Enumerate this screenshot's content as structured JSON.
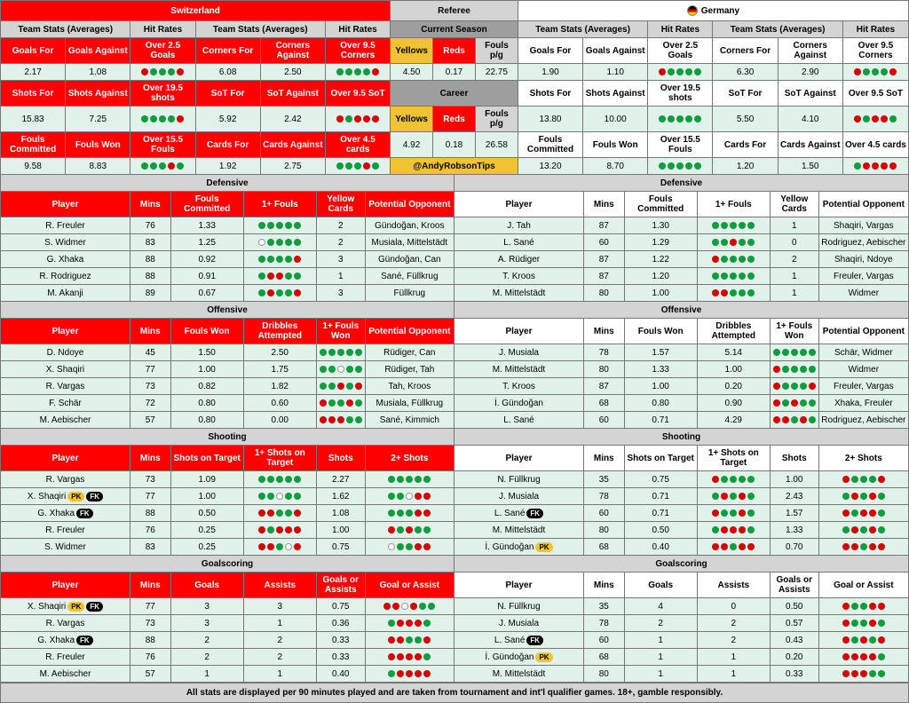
{
  "teams": {
    "left": {
      "name": "Switzerland",
      "flag": "#ff0000"
    },
    "right": {
      "name": "Germany",
      "flag": "#ffcc00"
    }
  },
  "refereeLabel": "Referee",
  "topHeaderLabels": {
    "tsAvg": "Team Stats (Averages)",
    "hitRates": "Hit Rates"
  },
  "goalsHeader": [
    "Goals For",
    "Goals Against",
    "Over 2.5 Goals",
    "Corners For",
    "Corners Against",
    "Over 9.5 Corners"
  ],
  "goalsLeft": [
    "2.17",
    "1.08",
    "rgggr",
    "6.08",
    "2.50",
    "ggggr"
  ],
  "goalsRight": [
    "1.90",
    "1.10",
    "rgggg",
    "6.30",
    "2.90",
    "rgggr"
  ],
  "refSeason": {
    "label": "Current Season",
    "yellowsLbl": "Yellows",
    "redsLbl": "Reds",
    "foulsLbl": "Fouls p/g",
    "yellows": "4.50",
    "reds": "0.17",
    "fouls": "22.75"
  },
  "shotsHeader": [
    "Shots For",
    "Shots Against",
    "Over 19.5 shots",
    "SoT For",
    "SoT Against",
    "Over 9.5 SoT"
  ],
  "shotsLeft": [
    "15.83",
    "7.25",
    "ggggr",
    "5.92",
    "2.42",
    "rgrrr"
  ],
  "shotsRight": [
    "13.80",
    "10.00",
    "ggggg",
    "5.50",
    "4.10",
    "rgrrg"
  ],
  "refCareer": {
    "label": "Career",
    "yellows": "4.92",
    "reds": "0.18",
    "fouls": "26.58"
  },
  "foulsHeader": [
    "Fouls Committed",
    "Fouls Won",
    "Over 15.5 Fouls",
    "Cards For",
    "Cards Against",
    "Over 4.5 cards"
  ],
  "foulsLeft": [
    "9.58",
    "8.83",
    "gggrg",
    "1.92",
    "2.75",
    "gggrg"
  ],
  "foulsRight": [
    "13.20",
    "8.70",
    "ggggg",
    "1.20",
    "1.50",
    "grrrr"
  ],
  "handle": "@AndyRobsonTips",
  "sections": {
    "defensive": {
      "title": "Defensive",
      "cols": [
        "Player",
        "Mins",
        "Fouls Committed",
        "1+ Fouls",
        "Yellow Cards",
        "Potential Opponent"
      ],
      "left": [
        [
          "R. Freuler",
          "76",
          "1.33",
          "ggggg",
          "2",
          "Gündoğan, Kroos"
        ],
        [
          "S. Widmer",
          "83",
          "1.25",
          "egggg",
          "2",
          "Musiala, Mittelstädt"
        ],
        [
          "G. Xhaka",
          "88",
          "0.92",
          "ggggr",
          "3",
          "Gündoğan, Can"
        ],
        [
          "R. Rodriguez",
          "88",
          "0.91",
          "grrgg",
          "1",
          "Sané, Füllkrug"
        ],
        [
          "M. Akanji",
          "89",
          "0.67",
          "grggr",
          "3",
          "Füllkrug"
        ]
      ],
      "right": [
        [
          "J. Tah",
          "87",
          "1.30",
          "ggggg",
          "1",
          "Shaqiri, Vargas"
        ],
        [
          "L. Sané",
          "60",
          "1.29",
          "ggrgg",
          "0",
          "Rodriguez, Aebischer"
        ],
        [
          "A. Rüdiger",
          "87",
          "1.22",
          "rgggg",
          "2",
          "Shaqiri, Ndoye"
        ],
        [
          "T. Kroos",
          "87",
          "1.20",
          "ggggg",
          "1",
          "Freuler, Vargas"
        ],
        [
          "M. Mittelstädt",
          "80",
          "1.00",
          "rrggg",
          "1",
          "Widmer"
        ]
      ]
    },
    "offensive": {
      "title": "Offensive",
      "cols": [
        "Player",
        "Mins",
        "Fouls Won",
        "Dribbles Attempted",
        "1+ Fouls Won",
        "Potential Opponent"
      ],
      "left": [
        [
          "D. Ndoye",
          "45",
          "1.50",
          "2.50",
          "ggggg",
          "Rüdiger, Can"
        ],
        [
          "X. Shaqiri",
          "77",
          "1.00",
          "1.75",
          "ggegg",
          "Rüdiger, Tah"
        ],
        [
          "R. Vargas",
          "73",
          "0.82",
          "1.82",
          "ggrgr",
          "Tah, Kroos"
        ],
        [
          "F. Schär",
          "72",
          "0.80",
          "0.60",
          "rggrg",
          "Musiala, Füllkrug"
        ],
        [
          "M. Aebischer",
          "57",
          "0.80",
          "0.00",
          "rrrgg",
          "Sané, Kimmich"
        ]
      ],
      "right": [
        [
          "J. Musiala",
          "78",
          "1.57",
          "5.14",
          "ggggg",
          "Schär, Widmer"
        ],
        [
          "M. Mittelstädt",
          "80",
          "1.33",
          "1.00",
          "rgggg",
          "Widmer"
        ],
        [
          "T. Kroos",
          "87",
          "1.00",
          "0.20",
          "rgggr",
          "Freuler, Vargas"
        ],
        [
          "İ. Gündoğan",
          "68",
          "0.80",
          "0.90",
          "rgrgg",
          "Xhaka, Freuler"
        ],
        [
          "L. Sané",
          "60",
          "0.71",
          "4.29",
          "rrgrg",
          "Rodriguez, Aebischer"
        ]
      ]
    },
    "shooting": {
      "title": "Shooting",
      "cols": [
        "Player",
        "Mins",
        "Shots on Target",
        "1+ Shots on Target",
        "Shots",
        "2+ Shots"
      ],
      "left": [
        [
          "R. Vargas",
          "73",
          "1.09",
          "ggggg",
          "2.27",
          "ggggg"
        ],
        [
          "X. Shaqiri|PK|FK",
          "77",
          "1.00",
          "ggegg",
          "1.62",
          "ggerr"
        ],
        [
          "G. Xhaka|FK",
          "88",
          "0.50",
          "rrggr",
          "1.08",
          "gggrr"
        ],
        [
          "R. Freuler",
          "76",
          "0.25",
          "rgrrr",
          "1.00",
          "rgrgg"
        ],
        [
          "S. Widmer",
          "83",
          "0.25",
          "rrger",
          "0.75",
          "eggrr"
        ]
      ],
      "right": [
        [
          "N. Füllkrug",
          "35",
          "0.75",
          "rgggg",
          "1.00",
          "rgggr"
        ],
        [
          "J. Musiala",
          "78",
          "0.71",
          "grgrg",
          "2.43",
          "grgrg"
        ],
        [
          "L. Sané|FK",
          "60",
          "0.71",
          "rggrg",
          "1.57",
          "rgrrg"
        ],
        [
          "M. Mittelstädt",
          "80",
          "0.50",
          "grrrg",
          "1.33",
          "grgrg"
        ],
        [
          "İ. Gündoğan|PK",
          "68",
          "0.40",
          "rrgrr",
          "0.70",
          "rrgrr"
        ]
      ]
    },
    "goalscoring": {
      "title": "Goalscoring",
      "cols": [
        "Player",
        "Mins",
        "Goals",
        "Assists",
        "Goals or Assists",
        "Goal or Assist"
      ],
      "left": [
        [
          "X. Shaqiri|PK|FK",
          "77",
          "3",
          "3",
          "0.75",
          "rrergg"
        ],
        [
          "R. Vargas",
          "73",
          "3",
          "1",
          "0.36",
          "grrrg"
        ],
        [
          "G. Xhaka|FK",
          "88",
          "2",
          "2",
          "0.33",
          "rrggr"
        ],
        [
          "R. Freuler",
          "76",
          "2",
          "2",
          "0.33",
          "rrrrg"
        ],
        [
          "M. Aebischer",
          "57",
          "1",
          "1",
          "0.40",
          "grrrr"
        ]
      ],
      "right": [
        [
          "N. Füllkrug",
          "35",
          "4",
          "0",
          "0.50",
          "rggrr"
        ],
        [
          "J. Musiala",
          "78",
          "2",
          "2",
          "0.57",
          "rggrg"
        ],
        [
          "L. Sané|FK",
          "60",
          "1",
          "2",
          "0.43",
          "rgrgr"
        ],
        [
          "İ. Gündoğan|PK",
          "68",
          "1",
          "1",
          "0.20",
          "rrrrg"
        ],
        [
          "M. Mittelstädt",
          "80",
          "1",
          "1",
          "0.33",
          "rrrgg"
        ]
      ]
    }
  },
  "footer": "All stats are displayed per 90 minutes played and are taken from tournament and int'l qualifier games. 18+, gamble responsibly.",
  "colors": {
    "red": "#ff0000",
    "green": "#0f9d40",
    "mint": "#e0f2ea",
    "gray": "#d4d4d4",
    "yellow": "#f1c232"
  },
  "widths": {
    "leftHalf": 440,
    "mid": 144,
    "rightHalf": 440,
    "stat6": 73.3,
    "playerSec": {
      "player": 160,
      "mins": 50,
      "c1": 90,
      "c2": 90,
      "c3": 60,
      "c4": 110
    }
  }
}
